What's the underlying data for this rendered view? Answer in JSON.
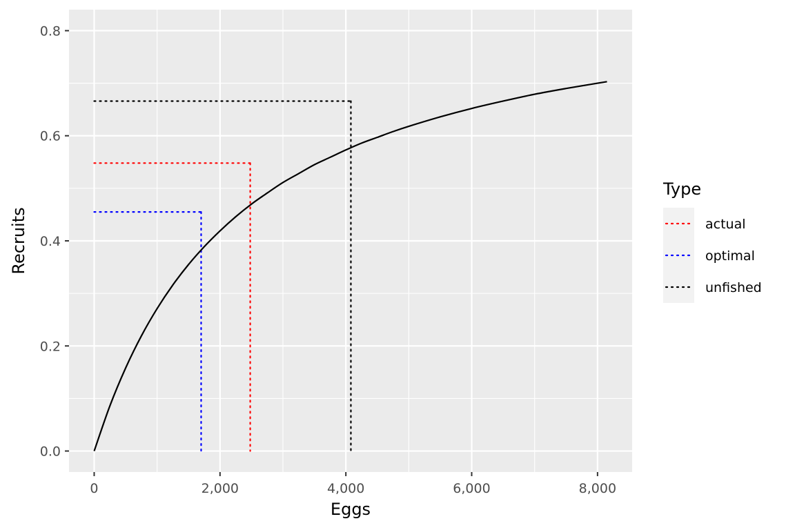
{
  "chart_data": {
    "type": "line",
    "xlabel": "Eggs",
    "ylabel": "Recruits",
    "xlim": [
      -400,
      8550
    ],
    "ylim": [
      -0.04,
      0.84
    ],
    "x_ticks": [
      0,
      2000,
      4000,
      6000,
      8000
    ],
    "x_tick_labels": [
      "0",
      "2,000",
      "4,000",
      "6,000",
      "8,000"
    ],
    "y_ticks": [
      0.0,
      0.2,
      0.4,
      0.6,
      0.8
    ],
    "y_tick_labels": [
      "0.0",
      "0.2",
      "0.4",
      "0.6",
      "0.8"
    ],
    "grid": true,
    "curve": {
      "x": [
        0,
        250,
        500,
        750,
        1000,
        1250,
        1500,
        1750,
        2000,
        2250,
        2500,
        2750,
        3000,
        3250,
        3500,
        3750,
        4000,
        4250,
        4500,
        4750,
        5000,
        5500,
        6000,
        6500,
        7000,
        7500,
        8000,
        8150
      ],
      "y": [
        0,
        0.086,
        0.158,
        0.219,
        0.271,
        0.316,
        0.355,
        0.389,
        0.419,
        0.446,
        0.47,
        0.491,
        0.511,
        0.528,
        0.545,
        0.559,
        0.573,
        0.586,
        0.597,
        0.608,
        0.618,
        0.636,
        0.652,
        0.666,
        0.679,
        0.69,
        0.7,
        0.703
      ],
      "color": "#000000"
    },
    "legend": {
      "title": "Type",
      "placement": "right",
      "entries": [
        {
          "label": "actual",
          "color": "#ff0000"
        },
        {
          "label": "optimal",
          "color": "#0000ff"
        },
        {
          "label": "unfished",
          "color": "#000000"
        }
      ]
    },
    "reference_points": [
      {
        "type": "actual",
        "x": 2480,
        "y": 0.548,
        "color": "#ff0000"
      },
      {
        "type": "optimal",
        "x": 1700,
        "y": 0.455,
        "color": "#0000ff"
      },
      {
        "type": "unfished",
        "x": 4080,
        "y": 0.666,
        "color": "#000000"
      }
    ]
  }
}
